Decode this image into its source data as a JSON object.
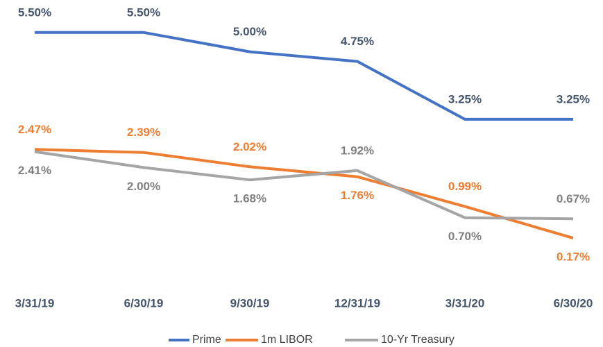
{
  "chart_data": {
    "type": "line",
    "categories": [
      "3/31/19",
      "6/30/19",
      "9/30/19",
      "12/31/19",
      "3/31/20",
      "6/30/20"
    ],
    "series": [
      {
        "name": "Prime",
        "color": "#4472c4",
        "values": [
          5.5,
          5.5,
          5.0,
          4.75,
          3.25,
          3.25
        ],
        "value_labels": [
          "5.50%",
          "5.50%",
          "5.00%",
          "4.75%",
          "3.25%",
          "3.25%"
        ]
      },
      {
        "name": "1m LIBOR",
        "color": "#ed7d31",
        "values": [
          2.47,
          2.39,
          2.02,
          1.76,
          0.99,
          0.17
        ],
        "value_labels": [
          "2.47%",
          "2.39%",
          "2.02%",
          "1.76%",
          "0.99%",
          "0.17%"
        ]
      },
      {
        "name": "10-Yr Treasury",
        "color": "#a5a5a5",
        "values": [
          2.41,
          2.0,
          1.68,
          1.92,
          0.7,
          0.67
        ],
        "value_labels": [
          "2.41%",
          "2.00%",
          "1.68%",
          "1.92%",
          "0.70%",
          "0.67%"
        ]
      }
    ],
    "legend": "bottom"
  }
}
